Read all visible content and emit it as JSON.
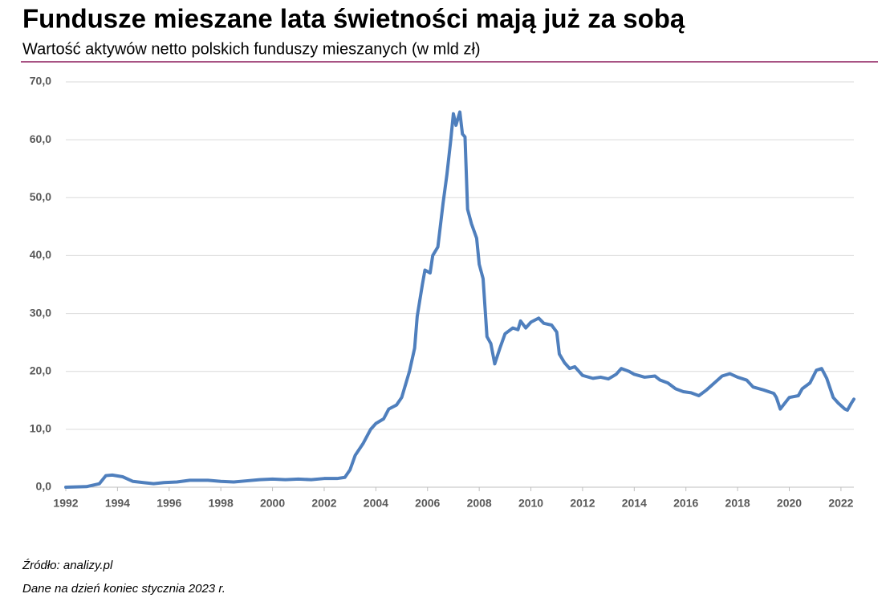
{
  "chart_data": {
    "type": "line",
    "title": "Fundusze mieszane lata świetności mają już za sobą",
    "subtitle": "Wartość aktywów netto polskich funduszy mieszanych (w mld zł)",
    "source": "Źródło: analizy.pl",
    "note": "Dane na dzień koniec stycznia 2023 r.",
    "color": "#4f7fbd",
    "grid": true,
    "xlim": [
      1992,
      2022.5
    ],
    "xticks": [
      1992,
      1994,
      1996,
      1998,
      2000,
      2002,
      2004,
      2006,
      2008,
      2010,
      2012,
      2014,
      2016,
      2018,
      2020,
      2022
    ],
    "ylim": [
      0,
      70
    ],
    "yticks": [
      {
        "value": 0,
        "label": "0,0"
      },
      {
        "value": 10,
        "label": "10,0"
      },
      {
        "value": 20,
        "label": "20,0"
      },
      {
        "value": 30,
        "label": "30,0"
      },
      {
        "value": 40,
        "label": "40,0"
      },
      {
        "value": 50,
        "label": "50,0"
      },
      {
        "value": 60,
        "label": "60,0"
      },
      {
        "value": 70,
        "label": "70,0"
      }
    ],
    "x": [
      1992.0,
      1992.8,
      1993.3,
      1993.55,
      1993.8,
      1994.2,
      1994.6,
      1995.0,
      1995.4,
      1995.8,
      1996.3,
      1996.8,
      1997.5,
      1998.0,
      1998.5,
      1999.0,
      1999.5,
      2000.0,
      2000.5,
      2001.0,
      2001.5,
      2002.0,
      2002.5,
      2002.8,
      2003.0,
      2003.2,
      2003.5,
      2003.8,
      2004.0,
      2004.3,
      2004.5,
      2004.8,
      2005.0,
      2005.3,
      2005.5,
      2005.6,
      2005.8,
      2005.9,
      2006.1,
      2006.2,
      2006.4,
      2006.6,
      2006.75,
      2006.9,
      2007.0,
      2007.1,
      2007.25,
      2007.35,
      2007.45,
      2007.55,
      2007.7,
      2007.9,
      2008.0,
      2008.15,
      2008.3,
      2008.45,
      2008.6,
      2008.8,
      2009.0,
      2009.3,
      2009.5,
      2009.6,
      2009.8,
      2010.0,
      2010.3,
      2010.5,
      2010.8,
      2011.0,
      2011.1,
      2011.3,
      2011.5,
      2011.7,
      2012.0,
      2012.4,
      2012.7,
      2013.0,
      2013.3,
      2013.5,
      2013.8,
      2014.0,
      2014.4,
      2014.8,
      2015.0,
      2015.3,
      2015.6,
      2015.9,
      2016.2,
      2016.5,
      2016.8,
      2017.1,
      2017.4,
      2017.7,
      2018.0,
      2018.35,
      2018.6,
      2019.0,
      2019.4,
      2019.5,
      2019.65,
      2020.0,
      2020.35,
      2020.5,
      2020.8,
      2021.05,
      2021.25,
      2021.45,
      2021.7,
      2021.9,
      2022.15,
      2022.25,
      2022.4,
      2022.5
    ],
    "values": [
      0,
      0.1,
      0.6,
      2.0,
      2.1,
      1.8,
      1.0,
      0.8,
      0.6,
      0.8,
      0.9,
      1.2,
      1.2,
      1.0,
      0.9,
      1.1,
      1.3,
      1.4,
      1.3,
      1.4,
      1.3,
      1.5,
      1.5,
      1.7,
      3.0,
      5.5,
      7.5,
      10.0,
      11.0,
      11.8,
      13.5,
      14.2,
      15.5,
      20.0,
      24.0,
      29.5,
      35.0,
      37.5,
      37.0,
      40.0,
      41.5,
      49.0,
      54.0,
      60.0,
      64.5,
      62.5,
      64.8,
      61.0,
      60.5,
      48.0,
      45.5,
      43.0,
      38.5,
      36.0,
      26.0,
      24.8,
      21.3,
      24.0,
      26.5,
      27.5,
      27.2,
      28.7,
      27.5,
      28.5,
      29.2,
      28.3,
      28.0,
      26.8,
      23.0,
      21.5,
      20.5,
      20.8,
      19.3,
      18.8,
      19.0,
      18.7,
      19.5,
      20.5,
      20.0,
      19.5,
      19.0,
      19.2,
      18.5,
      18.0,
      17.0,
      16.5,
      16.3,
      15.8,
      16.8,
      18.0,
      19.2,
      19.6,
      19.0,
      18.5,
      17.3,
      16.8,
      16.2,
      15.5,
      13.5,
      15.5,
      15.8,
      17.0,
      18.0,
      20.2,
      20.5,
      18.8,
      15.5,
      14.5,
      13.5,
      13.3,
      14.5,
      15.2
    ]
  }
}
